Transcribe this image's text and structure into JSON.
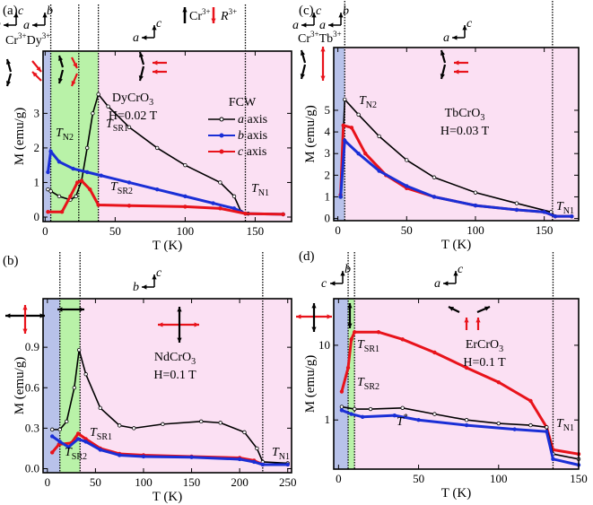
{
  "top_legend": {
    "cr_label": "Cr",
    "cr_sup": "3+",
    "r_label": "R",
    "r_sup": "3+"
  },
  "colors": {
    "a_axis": "#000000",
    "b_axis": "#1a2fd6",
    "c_axis": "#e8131b",
    "region_low": "#b8c2ea",
    "region_mid": "#b9f2a8",
    "region_high": "#fbe0f3"
  },
  "legend": {
    "title": "FCW",
    "entries": [
      {
        "letter": "a",
        "text": " axis"
      },
      {
        "letter": "b",
        "text": " axis"
      },
      {
        "letter": "c",
        "text": " axis"
      }
    ]
  },
  "chart_data": [
    {
      "panel": "(a)",
      "type": "line",
      "compound": "DyCrO",
      "compound_sub": "3",
      "field": "H=0.02 T",
      "xlabel": "T (K)",
      "ylabel": "M (emu/g)",
      "xlim": [
        -1.5,
        176
      ],
      "ylim": [
        -0.13,
        4.8
      ],
      "yscale": "linear",
      "xticks": [
        0,
        50,
        100,
        150
      ],
      "yticks": [
        0,
        1,
        2,
        3
      ],
      "ytick_labels": [
        "0",
        "1",
        "2",
        "3"
      ],
      "regions": [
        [
          0,
          4,
          "low"
        ],
        [
          4,
          38,
          "mid"
        ],
        [
          38,
          176,
          "high"
        ]
      ],
      "transitions": [
        4,
        24,
        38,
        143
      ],
      "spin_labels": {
        "ion1": "Cr",
        "ion1_sup": "3+",
        "ion2": "Dy",
        "ion2_sup": "3+"
      },
      "frames": [
        [
          "a",
          "c"
        ],
        [
          "a",
          "b"
        ],
        [
          "a",
          "c"
        ]
      ],
      "annotations": [
        {
          "main": "T",
          "sub": "N2"
        },
        {
          "main": "T",
          "sub": "SR1"
        },
        {
          "main": "T",
          "sub": "SR2"
        },
        {
          "main": "T",
          "sub": "N1"
        }
      ],
      "series": [
        {
          "name": "a axis",
          "color": "#000000",
          "points": [
            [
              2,
              0.8
            ],
            [
              4,
              0.75
            ],
            [
              10,
              0.6
            ],
            [
              18,
              0.5
            ],
            [
              22,
              0.6
            ],
            [
              26,
              1.05
            ],
            [
              30,
              2.0
            ],
            [
              34,
              3.0
            ],
            [
              38,
              3.55
            ],
            [
              45,
              3.2
            ],
            [
              60,
              2.6
            ],
            [
              80,
              2.0
            ],
            [
              100,
              1.5
            ],
            [
              125,
              1.0
            ],
            [
              135,
              0.6
            ],
            [
              140,
              0.15
            ],
            [
              145,
              0.1
            ],
            [
              170,
              0.08
            ]
          ]
        },
        {
          "name": "b axis",
          "color": "#1a2fd6",
          "points": [
            [
              2,
              1.3
            ],
            [
              4,
              1.9
            ],
            [
              10,
              1.6
            ],
            [
              20,
              1.4
            ],
            [
              30,
              1.3
            ],
            [
              40,
              1.2
            ],
            [
              60,
              1.0
            ],
            [
              80,
              0.8
            ],
            [
              100,
              0.6
            ],
            [
              120,
              0.4
            ],
            [
              135,
              0.25
            ],
            [
              143,
              0.1
            ],
            [
              170,
              0.08
            ]
          ]
        },
        {
          "name": "c axis",
          "color": "#e8131b",
          "points": [
            [
              2,
              0.15
            ],
            [
              12,
              0.15
            ],
            [
              18,
              0.6
            ],
            [
              23,
              1.0
            ],
            [
              26,
              1.05
            ],
            [
              32,
              0.8
            ],
            [
              38,
              0.35
            ],
            [
              60,
              0.33
            ],
            [
              100,
              0.3
            ],
            [
              125,
              0.25
            ],
            [
              143,
              0.1
            ],
            [
              170,
              0.08
            ]
          ]
        }
      ]
    },
    {
      "panel": "(b)",
      "type": "line",
      "compound": "NdCrO",
      "compound_sub": "3",
      "field": "H=0.1 T",
      "xlabel": "T (K)",
      "ylabel": "M (emu/g)",
      "xlim": [
        -4.5,
        254
      ],
      "ylim": [
        -0.03,
        1.26
      ],
      "yscale": "linear",
      "xticks": [
        0,
        50,
        100,
        150,
        200,
        250
      ],
      "yticks": [
        0,
        0.3,
        0.6,
        0.9
      ],
      "ytick_labels": [
        "0.0",
        "0.3",
        "0.6",
        "0.9"
      ],
      "regions": [
        [
          0,
          13,
          "low"
        ],
        [
          13,
          34,
          "mid"
        ],
        [
          34,
          254,
          "high"
        ]
      ],
      "transitions": [
        13,
        34,
        224
      ],
      "frames": [
        [
          "b",
          "c"
        ]
      ],
      "annotations": [
        {
          "main": "T",
          "sub": "SR1"
        },
        {
          "main": "T",
          "sub": "SR2"
        },
        {
          "main": "T",
          "sub": "N1"
        }
      ],
      "series": [
        {
          "name": "a axis",
          "color": "#000000",
          "points": [
            [
              5,
              0.29
            ],
            [
              13,
              0.29
            ],
            [
              20,
              0.35
            ],
            [
              28,
              0.6
            ],
            [
              33,
              0.88
            ],
            [
              40,
              0.7
            ],
            [
              55,
              0.45
            ],
            [
              75,
              0.32
            ],
            [
              90,
              0.3
            ],
            [
              120,
              0.33
            ],
            [
              160,
              0.35
            ],
            [
              180,
              0.34
            ],
            [
              205,
              0.27
            ],
            [
              218,
              0.15
            ],
            [
              224,
              0.05
            ],
            [
              250,
              0.04
            ]
          ]
        },
        {
          "name": "c axis",
          "color": "#e8131b",
          "points": [
            [
              5,
              0.12
            ],
            [
              12,
              0.18
            ],
            [
              25,
              0.19
            ],
            [
              32,
              0.26
            ],
            [
              40,
              0.22
            ],
            [
              55,
              0.15
            ],
            [
              75,
              0.11
            ],
            [
              100,
              0.1
            ],
            [
              150,
              0.09
            ],
            [
              200,
              0.08
            ],
            [
              215,
              0.06
            ],
            [
              224,
              0.03
            ],
            [
              250,
              0.03
            ]
          ]
        },
        {
          "name": "b axis",
          "color": "#1a2fd6",
          "points": [
            [
              5,
              0.24
            ],
            [
              13,
              0.2
            ],
            [
              22,
              0.16
            ],
            [
              32,
              0.22
            ],
            [
              40,
              0.2
            ],
            [
              55,
              0.14
            ],
            [
              75,
              0.1
            ],
            [
              100,
              0.09
            ],
            [
              150,
              0.085
            ],
            [
              200,
              0.07
            ],
            [
              215,
              0.05
            ],
            [
              224,
              0.03
            ],
            [
              250,
              0.03
            ]
          ]
        }
      ]
    },
    {
      "panel": "(c)",
      "type": "line",
      "compound": "TbCrO",
      "compound_sub": "3",
      "field": "H=0.03 T",
      "xlabel": "T (K)",
      "ylabel": "M (emu/g)",
      "xlim": [
        -3,
        175
      ],
      "ylim": [
        -0.1,
        7.9
      ],
      "yscale": "linear",
      "xticks": [
        0,
        50,
        100,
        150
      ],
      "yticks": [
        0,
        1,
        2,
        3,
        4,
        5
      ],
      "ytick_labels": [
        "0",
        "1",
        "2",
        "3",
        "4",
        "5"
      ],
      "regions": [
        [
          -3,
          5,
          "low"
        ],
        [
          5,
          175,
          "high"
        ]
      ],
      "transitions": [
        5,
        156
      ],
      "spin_labels": {
        "ion1": "Cr",
        "ion1_sup": "3+",
        "ion2": "Tb",
        "ion2_sup": "3+"
      },
      "frames": [
        [
          "a",
          "c"
        ],
        [
          "a",
          "b"
        ],
        [
          "a",
          "c"
        ]
      ],
      "annotations": [
        {
          "main": "T",
          "sub": "N2"
        },
        {
          "main": "T",
          "sub": "N1"
        }
      ],
      "series": [
        {
          "name": "a axis",
          "color": "#000000",
          "points": [
            [
              2,
              1
            ],
            [
              5,
              5.5
            ],
            [
              15,
              4.8
            ],
            [
              30,
              3.8
            ],
            [
              50,
              2.7
            ],
            [
              70,
              1.9
            ],
            [
              100,
              1.2
            ],
            [
              130,
              0.7
            ],
            [
              155,
              0.3
            ],
            [
              158,
              0.1
            ],
            [
              170,
              0.1
            ]
          ]
        },
        {
          "name": "c axis",
          "color": "#e8131b",
          "points": [
            [
              2,
              1.1
            ],
            [
              4,
              4.3
            ],
            [
              10,
              4.2
            ],
            [
              20,
              3.0
            ],
            [
              35,
              2.0
            ],
            [
              50,
              1.4
            ],
            [
              70,
              1.0
            ],
            [
              100,
              0.6
            ],
            [
              130,
              0.4
            ],
            [
              150,
              0.3
            ],
            [
              158,
              0.1
            ],
            [
              170,
              0.1
            ]
          ]
        },
        {
          "name": "b axis",
          "color": "#1a2fd6",
          "points": [
            [
              2,
              1
            ],
            [
              5,
              3.6
            ],
            [
              15,
              3.0
            ],
            [
              30,
              2.2
            ],
            [
              50,
              1.5
            ],
            [
              70,
              1.0
            ],
            [
              100,
              0.6
            ],
            [
              130,
              0.4
            ],
            [
              150,
              0.3
            ],
            [
              158,
              0.1
            ],
            [
              170,
              0.1
            ]
          ]
        }
      ]
    },
    {
      "panel": "(d)",
      "type": "line",
      "compound": "ErCrO",
      "compound_sub": "3",
      "field": "H=0.1 T",
      "xlabel": "T (K)",
      "ylabel": "M (emu/g)",
      "xlim": [
        -3,
        150
      ],
      "ylim": [
        0.22,
        42
      ],
      "yscale": "log",
      "xticks": [
        0,
        50,
        100,
        150
      ],
      "yticks": [
        1,
        10
      ],
      "ytick_labels": [
        "1",
        "10"
      ],
      "regions": [
        [
          -3,
          6,
          "low"
        ],
        [
          6,
          10,
          "mid"
        ],
        [
          10,
          150,
          "high"
        ]
      ],
      "transitions": [
        6,
        10,
        134
      ],
      "frames": [
        [
          "c",
          "b"
        ],
        [
          "a",
          "c"
        ]
      ],
      "annotations": [
        {
          "main": "T",
          "sub": "SR1"
        },
        {
          "main": "T",
          "sub": "SR2"
        },
        {
          "main": "T",
          "sup": "*"
        },
        {
          "main": "T",
          "sub": "N1"
        }
      ],
      "series": [
        {
          "name": "c axis",
          "color": "#e8131b",
          "points": [
            [
              2,
              2.4
            ],
            [
              6,
              5
            ],
            [
              8,
              12
            ],
            [
              10,
              15
            ],
            [
              25,
              15
            ],
            [
              40,
              12
            ],
            [
              60,
              8
            ],
            [
              80,
              5
            ],
            [
              100,
              3.2
            ],
            [
              120,
              1.8
            ],
            [
              130,
              0.8
            ],
            [
              134,
              0.4
            ],
            [
              150,
              0.35
            ]
          ]
        },
        {
          "name": "a axis",
          "color": "#000000",
          "points": [
            [
              2,
              1.5
            ],
            [
              10,
              1.4
            ],
            [
              20,
              1.4
            ],
            [
              40,
              1.45
            ],
            [
              60,
              1.2
            ],
            [
              80,
              1.0
            ],
            [
              100,
              0.9
            ],
            [
              120,
              0.85
            ],
            [
              130,
              0.8
            ],
            [
              134,
              0.35
            ],
            [
              150,
              0.3
            ]
          ]
        },
        {
          "name": "b axis",
          "color": "#1a2fd6",
          "points": [
            [
              2,
              1.35
            ],
            [
              8,
              1.2
            ],
            [
              15,
              1.1
            ],
            [
              35,
              1.15
            ],
            [
              50,
              1.0
            ],
            [
              80,
              0.85
            ],
            [
              110,
              0.75
            ],
            [
              130,
              0.7
            ],
            [
              134,
              0.3
            ],
            [
              150,
              0.25
            ]
          ]
        }
      ]
    }
  ]
}
